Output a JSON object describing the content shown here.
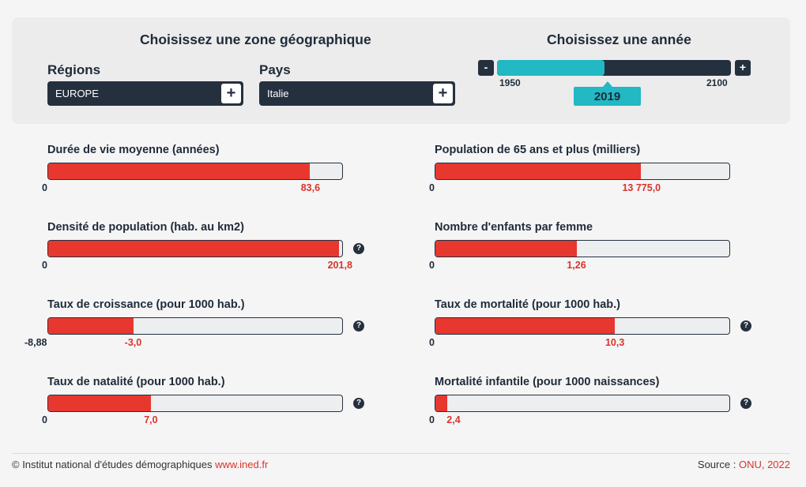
{
  "header": {
    "zone_title": "Choisissez une zone géographique",
    "year_title": "Choisissez une année",
    "regions_label": "Régions",
    "region_value": "EUROPE",
    "country_label": "Pays",
    "country_value": "Italie",
    "plus_symbol": "+",
    "minus_symbol": "-",
    "year_min": "1950",
    "year_max": "2100",
    "year_selected": "2019",
    "year_slider_fraction": 0.46
  },
  "metrics": [
    {
      "title": "Durée de vie moyenne (années)",
      "min": "0",
      "value": "83,6",
      "fill": 0.89,
      "help": false
    },
    {
      "title": "Population de 65 ans et plus (milliers)",
      "min": "0",
      "value": "13 775,0",
      "fill": 0.7,
      "help": false
    },
    {
      "title": "Densité de population (hab. au km2)",
      "min": "0",
      "value": "201,8",
      "fill": 0.99,
      "help": true
    },
    {
      "title": "Nombre d'enfants par femme",
      "min": "0",
      "value": "1,26",
      "fill": 0.48,
      "help": false
    },
    {
      "title": "Taux de croissance (pour 1000 hab.)",
      "min": "-8,88",
      "value": "-3,0",
      "fill": 0.29,
      "help": true
    },
    {
      "title": "Taux de mortalité (pour 1000 hab.)",
      "min": "0",
      "value": "10,3",
      "fill": 0.61,
      "help": true
    },
    {
      "title": "Taux de natalité (pour 1000 hab.)",
      "min": "0",
      "value": "7,0",
      "fill": 0.35,
      "help": true
    },
    {
      "title": "Mortalité infantile (pour 1000 naissances)",
      "min": "0",
      "value": "2,4",
      "fill": 0.04,
      "help": true
    }
  ],
  "help_symbol": "?",
  "footer": {
    "copyright": "© Institut national d'études démographiques",
    "site_link": "www.ined.fr",
    "source_label": "Source :",
    "source_value": "ONU, 2022"
  },
  "colors": {
    "dark": "#25303f",
    "accent": "#22b8c4",
    "bar_red": "#e8372f",
    "value_red": "#d9342b"
  }
}
